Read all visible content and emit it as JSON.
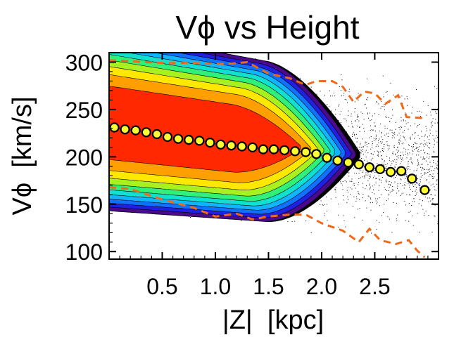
{
  "chart_data": {
    "type": "heatmap",
    "title": "Vϕ vs Height",
    "xlabel": "|Z|  [kpc]",
    "ylabel": "Vϕ  [km/s]",
    "xlim": [
      0.0,
      3.1
    ],
    "ylim": [
      92,
      310
    ],
    "x_ticks": [
      "0.5",
      "1.0",
      "1.5",
      "2.0",
      "2.5"
    ],
    "x_tick_values": [
      0.5,
      1.0,
      1.5,
      2.0,
      2.5
    ],
    "y_ticks": [
      "100",
      "150",
      "200",
      "250",
      "300"
    ],
    "y_tick_values": [
      100,
      150,
      200,
      250,
      300
    ],
    "contour_colors": [
      "#000000",
      "#4b0a8c",
      "#2020e0",
      "#1070ff",
      "#10b4ff",
      "#10e0d0",
      "#30f07a",
      "#a8f020",
      "#ffe800",
      "#ffa000",
      "#ff2800"
    ],
    "mean_curve_color": "#ffff33",
    "envelope_color": "#ee6a1a",
    "series": [
      {
        "values": [
          {
            "x": 0.05,
            "y": 231
          },
          {
            "x": 0.15,
            "y": 229
          },
          {
            "x": 0.25,
            "y": 228
          },
          {
            "x": 0.35,
            "y": 226
          },
          {
            "x": 0.45,
            "y": 224
          },
          {
            "x": 0.55,
            "y": 221
          },
          {
            "x": 0.65,
            "y": 219
          },
          {
            "x": 0.75,
            "y": 218
          },
          {
            "x": 0.85,
            "y": 217
          },
          {
            "x": 0.95,
            "y": 215
          },
          {
            "x": 1.05,
            "y": 213
          },
          {
            "x": 1.15,
            "y": 212
          },
          {
            "x": 1.25,
            "y": 211
          },
          {
            "x": 1.35,
            "y": 210
          },
          {
            "x": 1.45,
            "y": 208
          },
          {
            "x": 1.55,
            "y": 208
          },
          {
            "x": 1.65,
            "y": 207
          },
          {
            "x": 1.75,
            "y": 206
          },
          {
            "x": 1.85,
            "y": 205
          },
          {
            "x": 1.95,
            "y": 203
          },
          {
            "x": 2.05,
            "y": 199
          },
          {
            "x": 2.15,
            "y": 196
          },
          {
            "x": 2.25,
            "y": 194
          },
          {
            "x": 2.35,
            "y": 192
          },
          {
            "x": 2.45,
            "y": 189
          },
          {
            "x": 2.55,
            "y": 187
          },
          {
            "x": 2.65,
            "y": 184
          },
          {
            "x": 2.75,
            "y": 185
          },
          {
            "x": 2.85,
            "y": 177
          },
          {
            "x": 2.97,
            "y": 165
          }
        ]
      },
      {
        "values": [
          {
            "x": 0.0,
            "y": 302
          },
          {
            "x": 0.2,
            "y": 301
          },
          {
            "x": 0.5,
            "y": 299
          },
          {
            "x": 0.8,
            "y": 299
          },
          {
            "x": 1.1,
            "y": 298
          },
          {
            "x": 1.3,
            "y": 300
          },
          {
            "x": 1.5,
            "y": 288
          },
          {
            "x": 1.7,
            "y": 283
          },
          {
            "x": 1.85,
            "y": 276
          },
          {
            "x": 1.95,
            "y": 280
          },
          {
            "x": 2.1,
            "y": 280
          },
          {
            "x": 2.2,
            "y": 274
          },
          {
            "x": 2.3,
            "y": 258
          },
          {
            "x": 2.4,
            "y": 269
          },
          {
            "x": 2.5,
            "y": 267
          },
          {
            "x": 2.6,
            "y": 256
          },
          {
            "x": 2.72,
            "y": 265
          },
          {
            "x": 2.8,
            "y": 242
          },
          {
            "x": 2.95,
            "y": 241
          }
        ]
      },
      {
        "values": [
          {
            "x": 0.0,
            "y": 168
          },
          {
            "x": 0.2,
            "y": 166
          },
          {
            "x": 0.5,
            "y": 155
          },
          {
            "x": 0.8,
            "y": 146
          },
          {
            "x": 1.0,
            "y": 137
          },
          {
            "x": 1.2,
            "y": 140
          },
          {
            "x": 1.35,
            "y": 134
          },
          {
            "x": 1.5,
            "y": 137
          },
          {
            "x": 1.7,
            "y": 139
          },
          {
            "x": 1.85,
            "y": 139
          },
          {
            "x": 2.0,
            "y": 130
          },
          {
            "x": 2.2,
            "y": 122
          },
          {
            "x": 2.35,
            "y": 110
          },
          {
            "x": 2.45,
            "y": 124
          },
          {
            "x": 2.55,
            "y": 112
          },
          {
            "x": 2.7,
            "y": 108
          },
          {
            "x": 2.82,
            "y": 112
          },
          {
            "x": 2.9,
            "y": 101
          },
          {
            "x": 2.97,
            "y": 94
          }
        ]
      }
    ],
    "grid": false
  }
}
